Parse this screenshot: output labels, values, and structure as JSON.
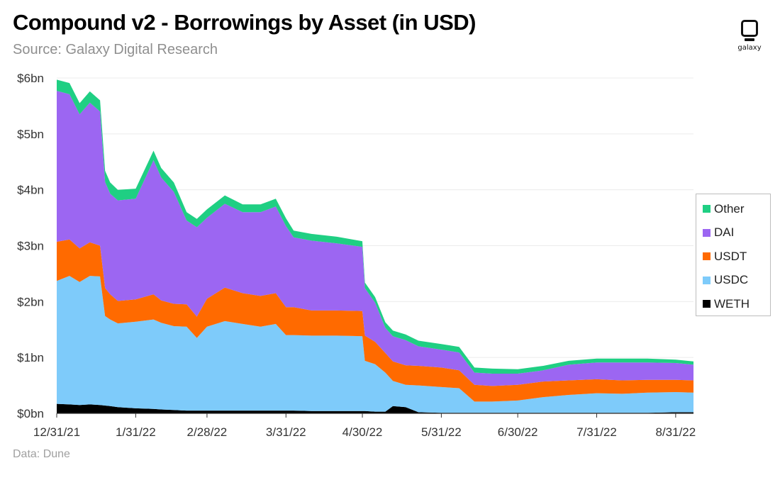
{
  "header": {
    "title": "Compound v2 - Borrowings by Asset (in USD)",
    "subtitle": "Source: Galaxy Digital Research"
  },
  "footer": {
    "note": "Data: Dune"
  },
  "logo": {
    "icon": "galaxy-logo-icon",
    "text": "galaxy"
  },
  "colors": {
    "WETH": "#000000",
    "USDC": "#7ecbfa",
    "USDT": "#ff6a00",
    "DAI": "#9c66f2",
    "Other": "#1fcf83",
    "grid": "#ececec",
    "axis": "#333333"
  },
  "chart_data": {
    "type": "area",
    "stacked": true,
    "title": "Compound v2 - Borrowings by Asset (in USD)",
    "subtitle": "Source: Galaxy Digital Research",
    "xlabel": "",
    "ylabel": "",
    "y_unit": "bn USD",
    "ylim": [
      0,
      6
    ],
    "xlim": [
      "2021-12-31",
      "2022-09-07"
    ],
    "x_ticks": [
      "12/31/21",
      "1/31/22",
      "2/28/22",
      "3/31/22",
      "4/30/22",
      "5/31/22",
      "6/30/22",
      "7/31/22",
      "8/31/22"
    ],
    "y_ticks": [
      "$0bn",
      "$1bn",
      "$2bn",
      "$3bn",
      "$4bn",
      "$5bn",
      "$6bn"
    ],
    "grid": true,
    "legend_position": "right",
    "legend_order": [
      "Other",
      "DAI",
      "USDT",
      "USDC",
      "WETH"
    ],
    "x": [
      "2021-12-31",
      "2022-01-05",
      "2022-01-09",
      "2022-01-13",
      "2022-01-17",
      "2022-01-19",
      "2022-01-21",
      "2022-01-24",
      "2022-01-31",
      "2022-02-07",
      "2022-02-10",
      "2022-02-15",
      "2022-02-20",
      "2022-02-24",
      "2022-02-28",
      "2022-03-07",
      "2022-03-14",
      "2022-03-21",
      "2022-03-27",
      "2022-03-31",
      "2022-04-03",
      "2022-04-10",
      "2022-04-20",
      "2022-04-30",
      "2022-05-01",
      "2022-05-05",
      "2022-05-09",
      "2022-05-12",
      "2022-05-17",
      "2022-05-22",
      "2022-05-31",
      "2022-06-07",
      "2022-06-13",
      "2022-06-20",
      "2022-06-30",
      "2022-07-10",
      "2022-07-20",
      "2022-07-31",
      "2022-08-10",
      "2022-08-20",
      "2022-08-31",
      "2022-09-07"
    ],
    "series": [
      {
        "name": "WETH",
        "values": [
          0.17,
          0.16,
          0.15,
          0.16,
          0.15,
          0.14,
          0.13,
          0.11,
          0.09,
          0.08,
          0.07,
          0.06,
          0.05,
          0.05,
          0.05,
          0.05,
          0.05,
          0.05,
          0.05,
          0.05,
          0.05,
          0.04,
          0.04,
          0.04,
          0.04,
          0.03,
          0.03,
          0.13,
          0.11,
          0.02,
          0.01,
          0.01,
          0.01,
          0.01,
          0.01,
          0.01,
          0.01,
          0.01,
          0.01,
          0.01,
          0.02,
          0.02
        ]
      },
      {
        "name": "USDC",
        "values": [
          2.2,
          2.3,
          2.2,
          2.3,
          2.3,
          1.6,
          1.55,
          1.5,
          1.55,
          1.6,
          1.55,
          1.5,
          1.5,
          1.3,
          1.5,
          1.6,
          1.55,
          1.5,
          1.55,
          1.35,
          1.35,
          1.35,
          1.35,
          1.34,
          0.9,
          0.85,
          0.7,
          0.45,
          0.4,
          0.48,
          0.46,
          0.44,
          0.2,
          0.2,
          0.22,
          0.28,
          0.32,
          0.35,
          0.34,
          0.36,
          0.36,
          0.35
        ]
      },
      {
        "name": "USDT",
        "values": [
          0.7,
          0.65,
          0.6,
          0.6,
          0.55,
          0.5,
          0.45,
          0.4,
          0.4,
          0.45,
          0.4,
          0.4,
          0.4,
          0.38,
          0.5,
          0.6,
          0.55,
          0.55,
          0.55,
          0.5,
          0.5,
          0.45,
          0.45,
          0.45,
          0.45,
          0.4,
          0.35,
          0.35,
          0.35,
          0.35,
          0.35,
          0.32,
          0.3,
          0.28,
          0.28,
          0.28,
          0.26,
          0.25,
          0.24,
          0.23,
          0.22,
          0.22
        ]
      },
      {
        "name": "DAI",
        "values": [
          2.7,
          2.6,
          2.4,
          2.5,
          2.4,
          1.9,
          1.8,
          1.8,
          1.8,
          2.4,
          2.2,
          2.0,
          1.5,
          1.6,
          1.45,
          1.5,
          1.45,
          1.5,
          1.55,
          1.45,
          1.25,
          1.25,
          1.2,
          1.15,
          0.85,
          0.7,
          0.45,
          0.45,
          0.45,
          0.35,
          0.32,
          0.32,
          0.22,
          0.22,
          0.2,
          0.2,
          0.28,
          0.3,
          0.32,
          0.31,
          0.3,
          0.28
        ]
      },
      {
        "name": "Other",
        "values": [
          0.2,
          0.2,
          0.2,
          0.2,
          0.2,
          0.2,
          0.2,
          0.19,
          0.18,
          0.17,
          0.17,
          0.17,
          0.15,
          0.15,
          0.15,
          0.15,
          0.14,
          0.14,
          0.14,
          0.14,
          0.12,
          0.12,
          0.12,
          0.1,
          0.1,
          0.1,
          0.1,
          0.1,
          0.1,
          0.1,
          0.1,
          0.1,
          0.09,
          0.09,
          0.08,
          0.08,
          0.07,
          0.07,
          0.07,
          0.07,
          0.06,
          0.06
        ]
      }
    ]
  }
}
